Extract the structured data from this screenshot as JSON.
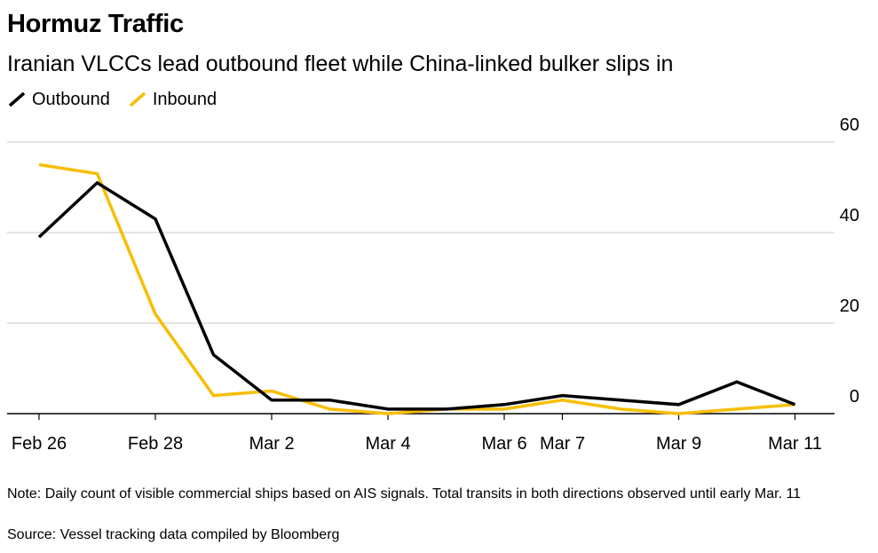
{
  "chart_data": {
    "type": "line",
    "title": "Hormuz Traffic",
    "subtitle": "Iranian VLCCs lead outbound fleet while China-linked bulker slips in",
    "categories": [
      "Feb 26",
      "Feb 27",
      "Feb 28",
      "Mar 1",
      "Mar 2",
      "Mar 3",
      "Mar 4",
      "Mar 5",
      "Mar 6",
      "Mar 7",
      "Mar 8",
      "Mar 9",
      "Mar 10",
      "Mar 11"
    ],
    "tick_labels": [
      "Feb 26",
      "Feb 28",
      "Mar 2",
      "Mar 4",
      "Mar 6",
      "Mar 7",
      "Mar 9",
      "Mar 11"
    ],
    "tick_indices": [
      0,
      2,
      4,
      6,
      8,
      9,
      11,
      13
    ],
    "series": [
      {
        "name": "Outbound",
        "color": "#000000",
        "values": [
          39,
          51,
          43,
          13,
          3,
          3,
          1,
          1,
          2,
          4,
          3,
          2,
          7,
          2
        ]
      },
      {
        "name": "Inbound",
        "color": "#f7be00",
        "values": [
          55,
          53,
          22,
          4,
          5,
          1,
          0,
          1,
          1,
          3,
          1,
          0,
          1,
          2
        ]
      }
    ],
    "yticks": [
      0,
      20,
      40,
      60
    ],
    "ylim": [
      0,
      60
    ],
    "y_axis_side": "right",
    "grid": true,
    "legend_position": "top-left"
  },
  "note": "Note: Daily count of visible commercial ships based on AIS signals. Total transits in both directions observed until early Mar. 11",
  "source": "Source: Vessel tracking data compiled by Bloomberg"
}
